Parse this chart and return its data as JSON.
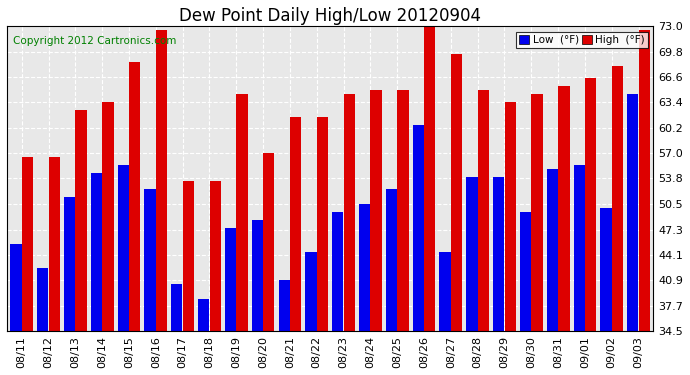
{
  "title": "Dew Point Daily High/Low 20120904",
  "copyright": "Copyright 2012 Cartronics.com",
  "dates": [
    "08/11",
    "08/12",
    "08/13",
    "08/14",
    "08/15",
    "08/16",
    "08/17",
    "08/18",
    "08/19",
    "08/20",
    "08/21",
    "08/22",
    "08/23",
    "08/24",
    "08/25",
    "08/26",
    "08/27",
    "08/28",
    "08/29",
    "08/30",
    "08/31",
    "09/01",
    "09/02",
    "09/03"
  ],
  "low": [
    45.5,
    42.5,
    51.5,
    54.5,
    55.5,
    52.5,
    40.5,
    38.5,
    47.5,
    48.5,
    41.0,
    44.5,
    49.5,
    50.5,
    52.5,
    60.5,
    44.5,
    54.0,
    54.0,
    49.5,
    55.0,
    55.5,
    50.0,
    64.5
  ],
  "high": [
    56.5,
    56.5,
    62.5,
    63.5,
    68.5,
    72.5,
    53.5,
    53.5,
    64.5,
    57.0,
    61.5,
    61.5,
    64.5,
    65.0,
    65.0,
    73.0,
    69.5,
    65.0,
    63.5,
    64.5,
    65.5,
    66.5,
    68.0,
    72.5
  ],
  "low_color": "#0000EE",
  "high_color": "#DD0000",
  "bg_color": "#FFFFFF",
  "plot_bg_color": "#E8E8E8",
  "grid_color": "#FFFFFF",
  "ylim_min": 34.5,
  "ylim_max": 73.0,
  "yticks": [
    34.5,
    37.7,
    40.9,
    44.1,
    47.3,
    50.5,
    53.8,
    57.0,
    60.2,
    63.4,
    66.6,
    69.8,
    73.0
  ],
  "title_fontsize": 12,
  "tick_fontsize": 8,
  "copyright_fontsize": 7.5,
  "legend_low_label": "Low  (°F)",
  "legend_high_label": "High  (°F)"
}
